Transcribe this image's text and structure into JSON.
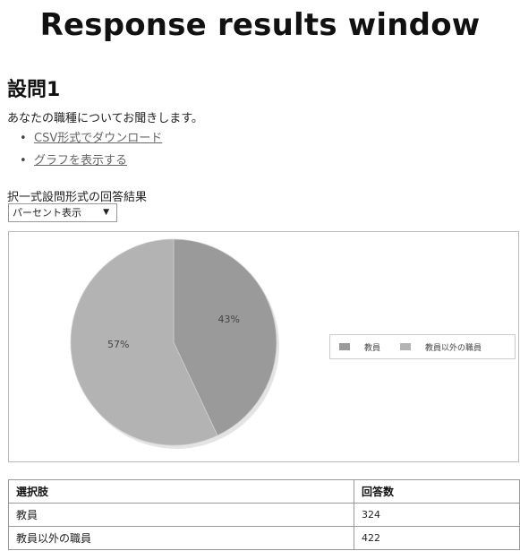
{
  "slide_title": "Response results window",
  "question": {
    "heading": "設問1",
    "text": "あなたの職種についてお聞きします。",
    "links": [
      "CSV形式でダウンロード",
      "グラフを表示する"
    ]
  },
  "result_label": "択一式設問形式の回答結果",
  "display_select": {
    "value": "パーセント表示",
    "arrow": "▼"
  },
  "colors": {
    "slice_teachers": "#9a9a9a",
    "slice_other": "#b3b3b3",
    "border": "#999999"
  },
  "chart_data": {
    "type": "pie",
    "labels": [
      "教員",
      "教員以外の職員"
    ],
    "values": [
      43,
      57
    ],
    "data_labels": [
      "43%",
      "57%"
    ],
    "legend_position": "right",
    "title": ""
  },
  "table": {
    "headers": [
      "選択肢",
      "回答数"
    ],
    "rows": [
      [
        "教員",
        "324"
      ],
      [
        "教員以外の職員",
        "422"
      ]
    ]
  }
}
